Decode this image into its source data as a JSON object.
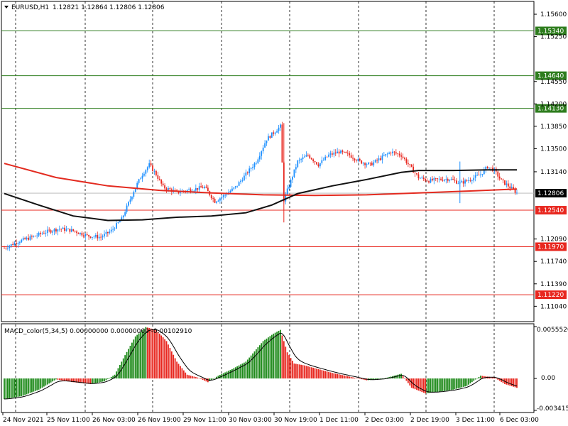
{
  "header": {
    "symbol": "EURUSD,H1",
    "ohlc": "1.12821 1.12864 1.12806 1.12806"
  },
  "macd": {
    "label": "MACD_color(5,34,5) 0.00000000 0.00000000 -0.00102910",
    "scale_top": "0.0055520",
    "scale_zero": "0.00",
    "scale_bottom": "-0.0034150"
  },
  "colors": {
    "bull": "#1e90ff",
    "bear": "#e8271f",
    "ma_red": "#e32a1f",
    "ma_black": "#111111",
    "level_green": "#2e7d1e",
    "level_red": "#e8271f",
    "macd_green": "#1e8a1a",
    "macd_red": "#e8271f"
  },
  "chart_data": {
    "type": "candlestick",
    "symbol": "EURUSD",
    "timeframe": "H1",
    "y_range": [
      1.108,
      1.158
    ],
    "price_ticks": [
      "1.15600",
      "1.15250",
      "1.14550",
      "1.14200",
      "1.13850",
      "1.13500",
      "1.13140",
      "1.12090",
      "1.11740",
      "1.11390",
      "1.11040"
    ],
    "current_price": "1.12806",
    "levels": [
      {
        "price": 1.1534,
        "label": "1.15340",
        "color": "green"
      },
      {
        "price": 1.1464,
        "label": "1.14640",
        "color": "green"
      },
      {
        "price": 1.1413,
        "label": "1.14130",
        "color": "green"
      },
      {
        "price": 1.1254,
        "label": "1.12540",
        "color": "red"
      },
      {
        "price": 1.1197,
        "label": "1.11970",
        "color": "red"
      },
      {
        "price": 1.1122,
        "label": "1.11220",
        "color": "red"
      }
    ],
    "time_labels": [
      "24 Nov 2021",
      "25 Nov 11:00",
      "26 Nov 03:00",
      "26 Nov 19:00",
      "29 Nov 11:00",
      "30 Nov 03:00",
      "30 Nov 19:00",
      "1 Dec 11:00",
      "2 Dec 03:00",
      "2 Dec 19:00",
      "3 Dec 11:00",
      "6 Dec 03:00"
    ],
    "close_path": [
      [
        0,
        1.1195
      ],
      [
        8,
        1.1205
      ],
      [
        16,
        1.1212
      ],
      [
        24,
        1.122
      ],
      [
        32,
        1.1225
      ],
      [
        40,
        1.1222
      ],
      [
        48,
        1.1214
      ],
      [
        56,
        1.1212
      ],
      [
        62,
        1.1222
      ],
      [
        68,
        1.124
      ],
      [
        76,
        1.129
      ],
      [
        80,
        1.131
      ],
      [
        84,
        1.1325
      ],
      [
        88,
        1.131
      ],
      [
        92,
        1.129
      ],
      [
        100,
        1.1282
      ],
      [
        108,
        1.1286
      ],
      [
        116,
        1.129
      ],
      [
        122,
        1.1268
      ],
      [
        128,
        1.1278
      ],
      [
        134,
        1.129
      ],
      [
        140,
        1.131
      ],
      [
        146,
        1.133
      ],
      [
        152,
        1.1365
      ],
      [
        158,
        1.138
      ],
      [
        160,
        1.1385
      ],
      [
        162,
        1.127
      ],
      [
        166,
        1.13
      ],
      [
        170,
        1.133
      ],
      [
        176,
        1.134
      ],
      [
        182,
        1.1325
      ],
      [
        188,
        1.134
      ],
      [
        194,
        1.1345
      ],
      [
        200,
        1.134
      ],
      [
        206,
        1.133
      ],
      [
        212,
        1.1325
      ],
      [
        218,
        1.1335
      ],
      [
        224,
        1.1345
      ],
      [
        230,
        1.134
      ],
      [
        234,
        1.1326
      ],
      [
        240,
        1.1305
      ],
      [
        246,
        1.13
      ],
      [
        252,
        1.1302
      ],
      [
        258,
        1.1303
      ],
      [
        264,
        1.1296
      ],
      [
        270,
        1.1302
      ],
      [
        276,
        1.131
      ],
      [
        280,
        1.1322
      ],
      [
        284,
        1.1316
      ],
      [
        288,
        1.13
      ],
      [
        292,
        1.1292
      ],
      [
        297,
        1.1281
      ]
    ],
    "ma_red": [
      [
        0,
        1.1327
      ],
      [
        30,
        1.1305
      ],
      [
        60,
        1.1292
      ],
      [
        90,
        1.1285
      ],
      [
        120,
        1.1281
      ],
      [
        150,
        1.1278
      ],
      [
        180,
        1.1277
      ],
      [
        210,
        1.1278
      ],
      [
        240,
        1.1281
      ],
      [
        270,
        1.1284
      ],
      [
        297,
        1.1287
      ]
    ],
    "ma_black": [
      [
        0,
        1.128
      ],
      [
        20,
        1.1262
      ],
      [
        40,
        1.1245
      ],
      [
        60,
        1.1238
      ],
      [
        80,
        1.1239
      ],
      [
        100,
        1.1243
      ],
      [
        120,
        1.1245
      ],
      [
        140,
        1.125
      ],
      [
        155,
        1.1262
      ],
      [
        170,
        1.128
      ],
      [
        190,
        1.1292
      ],
      [
        210,
        1.1302
      ],
      [
        230,
        1.1313
      ],
      [
        240,
        1.1316
      ],
      [
        260,
        1.1316
      ],
      [
        280,
        1.1317
      ],
      [
        297,
        1.1317
      ]
    ],
    "macd_range": [
      -0.003415,
      0.005552
    ],
    "macd_path": [
      [
        0,
        -0.0022
      ],
      [
        10,
        -0.0019
      ],
      [
        20,
        -0.0012
      ],
      [
        30,
        -0.0001
      ],
      [
        40,
        -0.0004
      ],
      [
        50,
        -0.0006
      ],
      [
        58,
        -0.0003
      ],
      [
        64,
        0.0004
      ],
      [
        70,
        0.0025
      ],
      [
        76,
        0.0045
      ],
      [
        82,
        0.0055
      ],
      [
        88,
        0.0052
      ],
      [
        94,
        0.004
      ],
      [
        100,
        0.0018
      ],
      [
        106,
        0.0004
      ],
      [
        112,
        0.0001
      ],
      [
        118,
        -0.0004
      ],
      [
        124,
        0.0003
      ],
      [
        132,
        0.001
      ],
      [
        140,
        0.0018
      ],
      [
        150,
        0.004
      ],
      [
        156,
        0.0048
      ],
      [
        160,
        0.0052
      ],
      [
        164,
        0.0028
      ],
      [
        168,
        0.0016
      ],
      [
        174,
        0.0014
      ],
      [
        182,
        0.001
      ],
      [
        190,
        0.0006
      ],
      [
        200,
        0.0002
      ],
      [
        210,
        -0.0002
      ],
      [
        220,
        0.0
      ],
      [
        230,
        0.0005
      ],
      [
        236,
        -0.001
      ],
      [
        244,
        -0.0016
      ],
      [
        252,
        -0.0014
      ],
      [
        260,
        -0.0012
      ],
      [
        268,
        -0.0008
      ],
      [
        276,
        0.0003
      ],
      [
        284,
        0.0001
      ],
      [
        290,
        -0.0006
      ],
      [
        297,
        -0.001
      ]
    ]
  }
}
